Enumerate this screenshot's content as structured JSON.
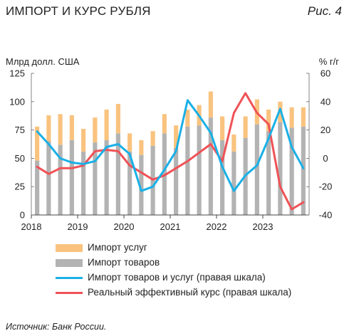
{
  "header": {
    "title": "ИМПОРТ И КУРС РУБЛЯ",
    "figure_label": "Рис. 4"
  },
  "axis_captions": {
    "left": "Млрд долл. США",
    "right": "% г/г"
  },
  "source": "Источник: Банк России.",
  "legend": {
    "services": "Импорт услуг",
    "goods": "Импорт товаров",
    "total_yoy": "Импорт товаров и услуг (правая шкала)",
    "reer": "Реальный эффективный курс (правая шкала)"
  },
  "colors": {
    "services": "#f9c37f",
    "goods": "#b3b3b3",
    "total_yoy": "#1ab0e6",
    "reer": "#ef5257"
  },
  "chart_data": {
    "type": "bar",
    "title": "ИМПОРТ И КУРС РУБЛЯ",
    "ylabel": "Млрд долл. США",
    "y2label": "% г/г",
    "ylim": [
      0,
      125
    ],
    "y2lim": [
      -40,
      60
    ],
    "yticks": [
      0,
      25,
      50,
      75,
      100,
      125
    ],
    "y2ticks": [
      -40,
      -20,
      0,
      20,
      40,
      60
    ],
    "xtick_labels": [
      "2018",
      "2019",
      "2020",
      "2021",
      "2022",
      "2023"
    ],
    "grid": false,
    "legend_position": "bottom",
    "categories": [
      "2018Q1",
      "2018Q2",
      "2018Q3",
      "2018Q4",
      "2019Q1",
      "2019Q2",
      "2019Q3",
      "2019Q4",
      "2020Q1",
      "2020Q2",
      "2020Q3",
      "2020Q4",
      "2021Q1",
      "2021Q2",
      "2021Q3",
      "2021Q4",
      "2022Q1",
      "2022Q2",
      "2022Q3",
      "2022Q4",
      "2023Q1",
      "2023Q2",
      "2023Q3",
      "2023Q4"
    ],
    "series": [
      {
        "name": "Импорт товаров",
        "kind": "bar",
        "axis": "left",
        "values": [
          48,
          65,
          62,
          66,
          56,
          64,
          66,
          72,
          56,
          53,
          61,
          72,
          59,
          78,
          79,
          86,
          66,
          56,
          68,
          80,
          74,
          82,
          77,
          78
        ]
      },
      {
        "name": "Импорт услуг",
        "kind": "bar",
        "axis": "left",
        "values": [
          30,
          23,
          27,
          22,
          20,
          22,
          27,
          26,
          16,
          13,
          13,
          17,
          20,
          15,
          18,
          23,
          21,
          15,
          19,
          22,
          19,
          18,
          18,
          17
        ]
      },
      {
        "name": "Импорт товаров и услуг (правая шкала)",
        "kind": "line",
        "axis": "right",
        "values": [
          19,
          10,
          0,
          -3,
          -4,
          -2,
          8,
          10,
          3,
          -23,
          -20,
          -8,
          5,
          41,
          30,
          18,
          -6,
          -23,
          -12,
          -5,
          14,
          35,
          8,
          -7
        ]
      },
      {
        "name": "Реальный эффективный курс (правая шкала)",
        "kind": "line",
        "axis": "right",
        "values": [
          -6,
          -11,
          -7,
          -7,
          -5,
          5,
          6,
          5,
          -5,
          -10,
          -15,
          -12,
          -7,
          -2,
          4,
          10,
          -2,
          32,
          46,
          32,
          24,
          -20,
          -36,
          -31
        ]
      }
    ]
  }
}
